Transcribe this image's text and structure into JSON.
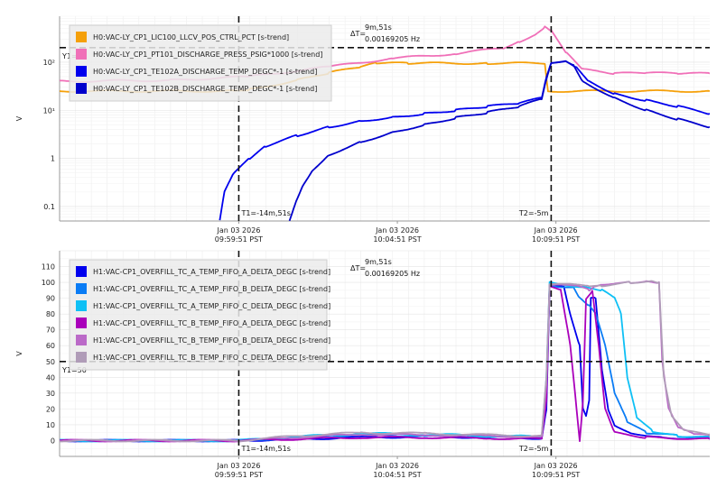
{
  "chart_data": [
    {
      "type": "line",
      "y_scale": "log",
      "ylabel": "V",
      "ylim": [
        0.05,
        900
      ],
      "y_ticks": [
        {
          "value": 0.1,
          "label": "0.1"
        },
        {
          "value": 1,
          "label": "1"
        },
        {
          "value": 10,
          "label": "10¹"
        },
        {
          "value": 100,
          "label": "10²"
        }
      ],
      "x_ticks": [
        {
          "offset_min": -14.85,
          "date": "Jan 03 2026",
          "time": "09:59:51 PST"
        },
        {
          "offset_min": -9.85,
          "date": "Jan 03 2026",
          "time": "10:04:51 PST"
        },
        {
          "offset_min": -4.85,
          "date": "Jan 03 2026",
          "time": "10:09:51 PST"
        }
      ],
      "xlim": [
        -20.5,
        0
      ],
      "cursors": {
        "t1": {
          "offset_min": -14.85,
          "label": "T1=-14m,51s"
        },
        "t2": {
          "offset_min": -5.0,
          "label": "T2=-5m"
        },
        "y1": {
          "value": 200,
          "label": "Y1="
        },
        "delta_label": "ΔT=",
        "delta_time": "9m,51s",
        "delta_freq": "0.00169205 Hz"
      },
      "legend_position": "top-left",
      "series": [
        {
          "name": "H0:VAC-LY_CP1_LIC100_LLCV_POS_CTRL_PCT [s-trend]",
          "color": "#f5a00a",
          "points": [
            [
              -20.5,
              25
            ],
            [
              -15,
              25
            ],
            [
              -14.5,
              27
            ],
            [
              -13,
              42
            ],
            [
              -12,
              60
            ],
            [
              -11,
              80
            ],
            [
              -10.5,
              95
            ],
            [
              -9.5,
              95
            ],
            [
              -7,
              95
            ],
            [
              -5.2,
              95
            ],
            [
              -5.1,
              25
            ],
            [
              0,
              25
            ]
          ]
        },
        {
          "name": "H0:VAC-LY_CP1_PT101_DISCHARGE_PRESS_PSIG*1000 [s-trend]",
          "color": "#f070b8",
          "points": [
            [
              -20.5,
              40
            ],
            [
              -17,
              42
            ],
            [
              -14.5,
              50
            ],
            [
              -12,
              80
            ],
            [
              -10,
              120
            ],
            [
              -8,
              150
            ],
            [
              -6.5,
              200
            ],
            [
              -6,
              270
            ],
            [
              -5.5,
              380
            ],
            [
              -5.2,
              550
            ],
            [
              -5.0,
              450
            ],
            [
              -4.5,
              150
            ],
            [
              -4,
              70
            ],
            [
              -3,
              58
            ],
            [
              -2,
              60
            ],
            [
              -1,
              58
            ],
            [
              0,
              58
            ]
          ]
        },
        {
          "name": "H0:VAC-LY_CP1_TE102A_DISCHARGE_TEMP_DEGC*-1 [s-trend]",
          "color": "#0000ee",
          "points": [
            [
              -15.45,
              0.05
            ],
            [
              -15.3,
              0.2
            ],
            [
              -15,
              0.5
            ],
            [
              -14.5,
              1
            ],
            [
              -14,
              1.8
            ],
            [
              -13,
              3
            ],
            [
              -12,
              4.5
            ],
            [
              -11,
              6
            ],
            [
              -10,
              7.2
            ],
            [
              -9,
              8.5
            ],
            [
              -8,
              10
            ],
            [
              -7,
              12
            ],
            [
              -6,
              14
            ],
            [
              -5.3,
              18
            ],
            [
              -5.15,
              50
            ],
            [
              -5.0,
              100
            ],
            [
              -4.5,
              105
            ],
            [
              -4.2,
              80
            ],
            [
              -3.8,
              40
            ],
            [
              -3,
              22
            ],
            [
              -2,
              16
            ],
            [
              -1,
              12
            ],
            [
              0,
              8.5
            ]
          ]
        },
        {
          "name": "H0:VAC-LY_CP1_TE102B_DISCHARGE_TEMP_DEGC*-1 [s-trend]",
          "color": "#0000cc",
          "points": [
            [
              -13.25,
              0.05
            ],
            [
              -13,
              0.15
            ],
            [
              -12.8,
              0.3
            ],
            [
              -12.5,
              0.6
            ],
            [
              -12,
              1.2
            ],
            [
              -11,
              2.2
            ],
            [
              -10,
              3.5
            ],
            [
              -9,
              5
            ],
            [
              -8,
              7
            ],
            [
              -7,
              9
            ],
            [
              -6,
              12
            ],
            [
              -5.3,
              17
            ],
            [
              -5.15,
              45
            ],
            [
              -5.0,
              100
            ],
            [
              -4.5,
              105
            ],
            [
              -4.3,
              90
            ],
            [
              -4,
              40
            ],
            [
              -3,
              18
            ],
            [
              -2,
              10
            ],
            [
              -1,
              6.5
            ],
            [
              0,
              4.5
            ]
          ]
        }
      ]
    },
    {
      "type": "line",
      "ylabel": "V",
      "ylim": [
        -10,
        120
      ],
      "y_ticks": [
        0,
        10,
        20,
        30,
        40,
        50,
        60,
        70,
        80,
        90,
        100,
        110
      ],
      "x_ticks": [
        {
          "offset_min": -14.85,
          "date": "Jan 03 2026",
          "time": "09:59:51 PST"
        },
        {
          "offset_min": -9.85,
          "date": "Jan 03 2026",
          "time": "10:04:51 PST"
        },
        {
          "offset_min": -4.85,
          "date": "Jan 03 2026",
          "time": "10:09:51 PST"
        }
      ],
      "xlim": [
        -20.5,
        0
      ],
      "cursors": {
        "t1": {
          "offset_min": -14.85,
          "label": "T1=-14m,51s"
        },
        "t2": {
          "offset_min": -5.0,
          "label": "T2=-5m"
        },
        "y1": {
          "value": 50,
          "label": "Y1=50"
        },
        "delta_label": "ΔT=",
        "delta_time": "9m,51s",
        "delta_freq": "0.00169205 Hz"
      },
      "legend_position": "top-left",
      "series": [
        {
          "name": "H1:VAC-CP1_OVERFILL_TC_A_TEMP_FIFO_A_DELTA_DEGC [s-trend]",
          "color": "#0000ee",
          "points": [
            [
              -20.5,
              0
            ],
            [
              -14.85,
              0
            ],
            [
              -13,
              1
            ],
            [
              -11,
              2
            ],
            [
              -9,
              2.5
            ],
            [
              -7,
              2
            ],
            [
              -5.3,
              1.5
            ],
            [
              -5.15,
              20
            ],
            [
              -5.05,
              98
            ],
            [
              -4.6,
              98
            ],
            [
              -4.4,
              80
            ],
            [
              -4.1,
              60
            ],
            [
              -4.0,
              20
            ],
            [
              -3.9,
              15
            ],
            [
              -3.8,
              25
            ],
            [
              -3.75,
              90
            ],
            [
              -3.6,
              90
            ],
            [
              -3.4,
              45
            ],
            [
              -3.2,
              20
            ],
            [
              -3.0,
              10
            ],
            [
              -2.5,
              5
            ],
            [
              -1.5,
              2
            ],
            [
              0,
              1
            ]
          ]
        },
        {
          "name": "H1:VAC-CP1_OVERFILL_TC_A_TEMP_FIFO_B_DELTA_DEGC [s-trend]",
          "color": "#0a7cf5",
          "points": [
            [
              -20.5,
              0
            ],
            [
              -14.85,
              0
            ],
            [
              -13,
              2
            ],
            [
              -11,
              3.5
            ],
            [
              -9,
              3
            ],
            [
              -7,
              2.5
            ],
            [
              -5.3,
              2
            ],
            [
              -5.15,
              30
            ],
            [
              -5.05,
              98
            ],
            [
              -4.3,
              97
            ],
            [
              -4.1,
              90
            ],
            [
              -3.8,
              85
            ],
            [
              -3.6,
              80
            ],
            [
              -3.3,
              60
            ],
            [
              -3.0,
              30
            ],
            [
              -2.6,
              12
            ],
            [
              -2,
              5
            ],
            [
              -1,
              3
            ],
            [
              0,
              2
            ]
          ]
        },
        {
          "name": "H1:VAC-CP1_OVERFILL_TC_A_TEMP_FIFO_C_DELTA_DEGC [s-trend]",
          "color": "#0ec0f5",
          "points": [
            [
              -20.5,
              0
            ],
            [
              -14.85,
              0
            ],
            [
              -13,
              2.5
            ],
            [
              -11,
              4.5
            ],
            [
              -9,
              4
            ],
            [
              -7,
              3
            ],
            [
              -5.3,
              2.5
            ],
            [
              -5.15,
              40
            ],
            [
              -5.05,
              100
            ],
            [
              -4.0,
              97
            ],
            [
              -3.4,
              95
            ],
            [
              -3.0,
              90
            ],
            [
              -2.8,
              80
            ],
            [
              -2.6,
              40
            ],
            [
              -2.3,
              15
            ],
            [
              -1.8,
              6
            ],
            [
              -1,
              3
            ],
            [
              0,
              2
            ]
          ]
        },
        {
          "name": "H1:VAC-CP1_OVERFILL_TC_B_TEMP_FIFO_A_DELTA_DEGC [s-trend]",
          "color": "#aa00bb",
          "points": [
            [
              -20.5,
              0
            ],
            [
              -14.85,
              0
            ],
            [
              -13,
              1
            ],
            [
              -11,
              2
            ],
            [
              -9,
              2
            ],
            [
              -7,
              1.5
            ],
            [
              -5.3,
              1
            ],
            [
              -5.15,
              25
            ],
            [
              -5.05,
              97
            ],
            [
              -4.7,
              95
            ],
            [
              -4.4,
              60
            ],
            [
              -4.2,
              20
            ],
            [
              -4.1,
              0
            ],
            [
              -4.0,
              25
            ],
            [
              -3.9,
              90
            ],
            [
              -3.7,
              95
            ],
            [
              -3.5,
              60
            ],
            [
              -3.3,
              20
            ],
            [
              -3.0,
              5
            ],
            [
              -2,
              2
            ],
            [
              0,
              1
            ]
          ]
        },
        {
          "name": "H1:VAC-CP1_OVERFILL_TC_B_TEMP_FIFO_B_DELTA_DEGC [s-trend]",
          "color": "#bb6ac8",
          "points": [
            [
              -20.5,
              0
            ],
            [
              -14.85,
              0
            ],
            [
              -13,
              2
            ],
            [
              -11,
              4
            ],
            [
              -9,
              3.5
            ],
            [
              -7,
              3
            ],
            [
              -5.3,
              2
            ],
            [
              -5.15,
              35
            ],
            [
              -5.05,
              98
            ],
            [
              -4.2,
              98
            ],
            [
              -3.8,
              95
            ],
            [
              -3.6,
              98
            ],
            [
              -3.4,
              99
            ],
            [
              -2.5,
              100
            ],
            [
              -2.0,
              101
            ],
            [
              -1.6,
              100
            ],
            [
              -1.5,
              50
            ],
            [
              -1.3,
              20
            ],
            [
              -1,
              8
            ],
            [
              -0.5,
              4
            ],
            [
              0,
              3
            ]
          ]
        },
        {
          "name": "H1:VAC-CP1_OVERFILL_TC_B_TEMP_FIFO_C_DELTA_DEGC [s-trend]",
          "color": "#b09cb8",
          "points": [
            [
              -20.5,
              0
            ],
            [
              -14.85,
              0
            ],
            [
              -13,
              3
            ],
            [
              -11,
              5
            ],
            [
              -9,
              4.5
            ],
            [
              -7,
              3.5
            ],
            [
              -5.3,
              3
            ],
            [
              -5.15,
              40
            ],
            [
              -5.05,
              99
            ],
            [
              -3.8,
              98
            ],
            [
              -3.4,
              98
            ],
            [
              -2.5,
              100
            ],
            [
              -1.8,
              101
            ],
            [
              -1.6,
              100
            ],
            [
              -1.45,
              40
            ],
            [
              -1.2,
              15
            ],
            [
              -0.8,
              6
            ],
            [
              0,
              4
            ]
          ]
        }
      ]
    }
  ]
}
